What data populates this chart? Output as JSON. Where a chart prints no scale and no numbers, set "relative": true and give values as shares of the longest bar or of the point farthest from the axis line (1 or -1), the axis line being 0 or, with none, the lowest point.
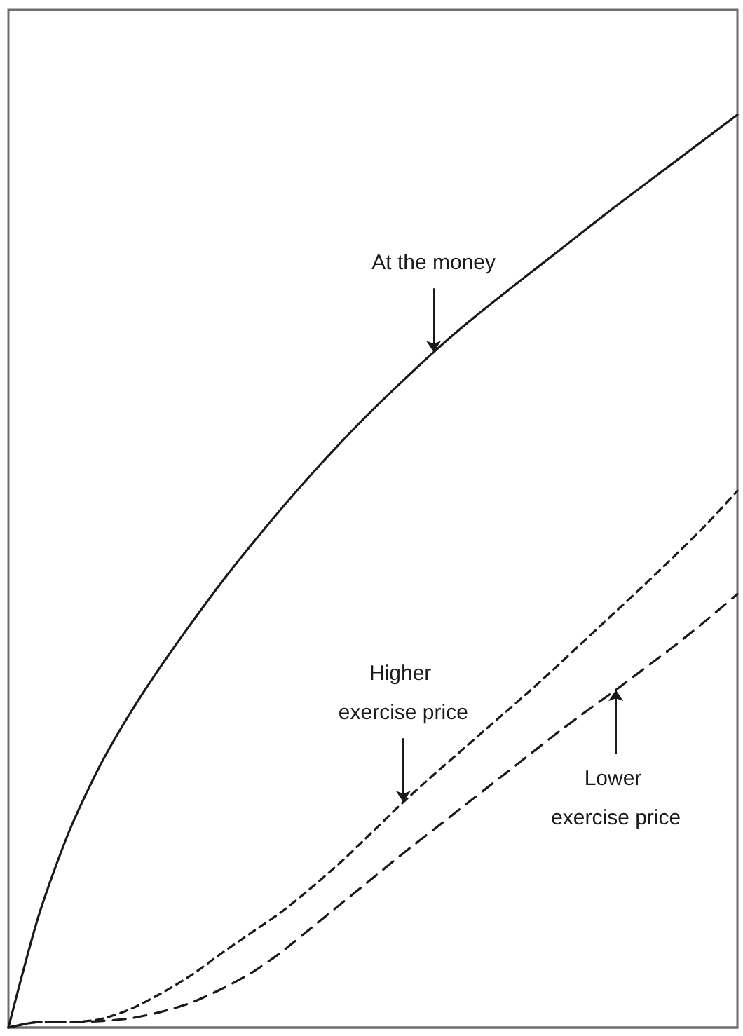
{
  "chart_data": {
    "type": "line",
    "relative": true,
    "legend": false,
    "grid": false,
    "tick_labels": false,
    "marker": "none",
    "categories": [
      null,
      null,
      null,
      null,
      null,
      null,
      null,
      null,
      null,
      null,
      null,
      null,
      null,
      null,
      null,
      null,
      null,
      null,
      null,
      null,
      null,
      null,
      null,
      null,
      null
    ],
    "series": [
      {
        "name": "At the money",
        "color": "#1a1a1a",
        "line_style": "solid",
        "values": [
          0,
          0.123,
          0.215,
          0.286,
          0.344,
          0.395,
          0.442,
          0.487,
          0.529,
          0.569,
          0.607,
          0.643,
          0.677,
          0.709,
          0.74,
          0.769,
          0.796,
          0.822,
          0.848,
          0.874,
          0.9,
          0.925,
          0.95,
          0.975,
          1
        ]
      },
      {
        "name": "Higher exercise price",
        "color": "#1a1a1a",
        "line_style": "dotted",
        "values": [
          0,
          0.006,
          0.006,
          0.009,
          0.02,
          0.037,
          0.057,
          0.081,
          0.104,
          0.127,
          0.154,
          0.183,
          0.215,
          0.247,
          0.277,
          0.306,
          0.335,
          0.364,
          0.394,
          0.425,
          0.456,
          0.487,
          0.519,
          0.552,
          0.588
        ]
      },
      {
        "name": "Lower exercise price",
        "color": "#1a1a1a",
        "line_style": "dashed",
        "values": [
          0,
          0.006,
          0.006,
          0.007,
          0.01,
          0.017,
          0.027,
          0.042,
          0.06,
          0.083,
          0.11,
          0.137,
          0.164,
          0.191,
          0.217,
          0.243,
          0.269,
          0.295,
          0.321,
          0.346,
          0.37,
          0.395,
          0.42,
          0.447,
          0.475
        ]
      }
    ]
  }
}
